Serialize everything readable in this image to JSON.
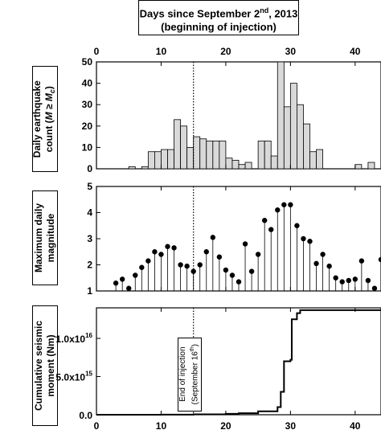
{
  "header": {
    "title_line1_a": "Days since September 2",
    "title_line1_sup": "nd",
    "title_line1_b": ", 2013",
    "title_line2": "(beginning of injection)"
  },
  "chart_data": [
    {
      "type": "bar",
      "ylabel_a": "Daily earthquake",
      "ylabel_b": "count (",
      "ylabel_c": "M",
      "ylabel_d": " ≥ ",
      "ylabel_e": "M",
      "ylabel_f": "c",
      "ylabel_g": ")",
      "xlim": [
        0,
        44
      ],
      "ylim": [
        0,
        50
      ],
      "x_ticks": [
        0,
        10,
        20,
        30,
        40
      ],
      "y_ticks": [
        0,
        10,
        20,
        30,
        40,
        50
      ],
      "x_tick_labels": [
        "0",
        "10",
        "20",
        "30",
        "40"
      ],
      "y_tick_labels": [
        "0",
        "10",
        "20",
        "30",
        "40",
        "50"
      ],
      "day_start": 0,
      "values": [
        0,
        0,
        0,
        0,
        0,
        1,
        0,
        1,
        8,
        8,
        9,
        9,
        23,
        20,
        10,
        15,
        14,
        13,
        13,
        13,
        5,
        4,
        2,
        3,
        0,
        13,
        13,
        6,
        50,
        29,
        40,
        30,
        21,
        8,
        9,
        0,
        0,
        0,
        0,
        0,
        2,
        0,
        3,
        0
      ],
      "colors": {
        "fill": "#d9d9d9",
        "stroke": "#000000"
      }
    },
    {
      "type": "scatter",
      "ylabel_a": "Maximum daily",
      "ylabel_b": "magnitude",
      "xlim": [
        0,
        44
      ],
      "ylim": [
        1,
        5
      ],
      "x_ticks": [
        0,
        10,
        20,
        30,
        40
      ],
      "y_ticks": [
        1,
        2,
        3,
        4,
        5
      ],
      "y_tick_labels": [
        "1",
        "2",
        "3",
        "4",
        "5"
      ],
      "x": [
        3,
        4,
        5,
        6,
        7,
        8,
        9,
        10,
        11,
        12,
        13,
        14,
        15,
        16,
        17,
        18,
        19,
        20,
        21,
        22,
        23,
        24,
        25,
        26,
        27,
        28,
        29,
        30,
        31,
        32,
        33,
        34,
        35,
        36,
        37,
        38,
        39,
        40,
        41,
        42,
        43,
        44
      ],
      "y": [
        1.3,
        1.45,
        1.1,
        1.6,
        1.9,
        2.15,
        2.5,
        2.4,
        2.7,
        2.65,
        2.0,
        1.95,
        1.75,
        2.0,
        2.5,
        3.05,
        2.3,
        1.8,
        1.6,
        1.35,
        2.8,
        1.75,
        2.4,
        3.7,
        3.35,
        4.1,
        4.3,
        4.3,
        3.5,
        3.0,
        2.9,
        2.05,
        2.4,
        1.95,
        1.5,
        1.35,
        1.4,
        1.45,
        2.15,
        1.4,
        1.1,
        2.2
      ]
    },
    {
      "type": "line",
      "ylabel_a": "Cumulative seismic",
      "ylabel_b": "moment (Nm)",
      "xlim": [
        0,
        44
      ],
      "ylim": [
        0,
        1.4e+16
      ],
      "x_ticks": [
        0,
        10,
        20,
        30,
        40
      ],
      "x_tick_labels": [
        "0",
        "10",
        "20",
        "30",
        "40"
      ],
      "y_ticks": [
        0,
        5000000000000000.0,
        1e+16
      ],
      "y_tick_labels": [
        {
          "base": "0.0",
          "exp": ""
        },
        {
          "base": "5.0x10",
          "exp": "15"
        },
        {
          "base": "1.0x10",
          "exp": "16"
        }
      ],
      "x": [
        0,
        10,
        15,
        20,
        22,
        25,
        28,
        28.5,
        29,
        30,
        30.2,
        31,
        31.5,
        44
      ],
      "y": [
        0,
        10000000000000.0,
        50000000000000.0,
        120000000000000.0,
        200000000000000.0,
        450000000000000.0,
        1000000000000000.0,
        3000000000000000.0,
        7000000000000000.0,
        7200000000000000.0,
        1.25e+16,
        1.33e+16,
        1.37e+16,
        1.37e+16
      ]
    }
  ],
  "annotation": {
    "injection_end_day": 15,
    "line1": "End of injection",
    "line2_a": "(September 16",
    "line2_sup": "th",
    "line2_b": ")"
  }
}
